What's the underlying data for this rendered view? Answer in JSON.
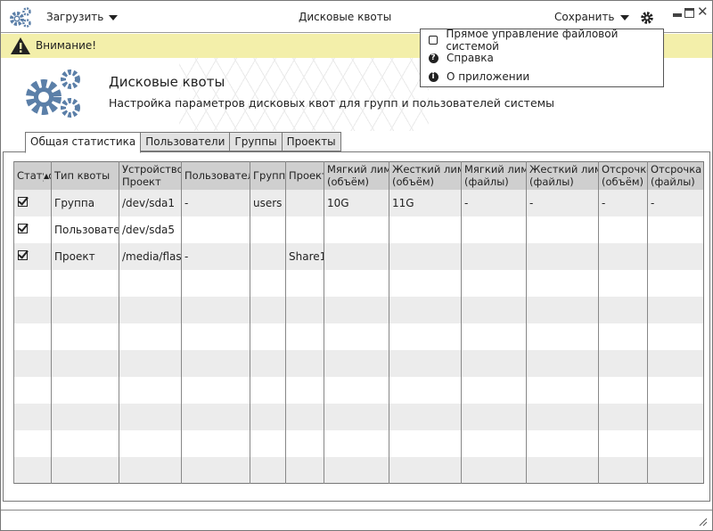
{
  "titlebar": {
    "load_label": "Загрузить",
    "title": "Дисковые квоты",
    "save_label": "Сохранить"
  },
  "warning": {
    "text": "Внимание!"
  },
  "dropdown": {
    "items": [
      {
        "icon": "checkbox-icon",
        "label": "Прямое управление файловой системой"
      },
      {
        "icon": "help-icon",
        "label": "Справка"
      },
      {
        "icon": "info-icon",
        "label": "О приложении"
      }
    ]
  },
  "header": {
    "title": "Дисковые квоты",
    "subtitle": "Настройка параметров дисковых квот для групп и пользователей системы"
  },
  "tabs": [
    {
      "label": "Общая статистика",
      "active": true
    },
    {
      "label": "Пользователи"
    },
    {
      "label": "Группы"
    },
    {
      "label": "Проекты"
    }
  ],
  "table": {
    "columns": [
      {
        "l1": "Статус",
        "l2": ""
      },
      {
        "l1": "Тип квоты",
        "l2": "",
        "sort": "asc"
      },
      {
        "l1": "Устройство",
        "l2": "Проект"
      },
      {
        "l1": "Пользователь",
        "l2": ""
      },
      {
        "l1": "Группа",
        "l2": ""
      },
      {
        "l1": "Проект",
        "l2": ""
      },
      {
        "l1": "Мягкий лимит",
        "l2": "(объём)"
      },
      {
        "l1": "Жесткий лимит",
        "l2": "(объём)"
      },
      {
        "l1": "Мягкий лимит",
        "l2": "(файлы)"
      },
      {
        "l1": "Жесткий лимит",
        "l2": "(файлы)"
      },
      {
        "l1": "Отсрочка",
        "l2": "(объём)"
      },
      {
        "l1": "Отсрочка",
        "l2": "(файлы)"
      }
    ],
    "rows": [
      {
        "checked": true,
        "cells": [
          "Группа",
          "/dev/sda1",
          "-",
          "users",
          "",
          "10G",
          "11G",
          "-",
          "-",
          "-",
          "-"
        ]
      },
      {
        "checked": true,
        "cells": [
          "Пользователь",
          "/dev/sda5",
          "",
          "",
          "",
          "",
          "",
          "",
          "",
          "",
          ""
        ]
      },
      {
        "checked": true,
        "cells": [
          "Проект",
          "/media/flash",
          "-",
          "",
          "Share1",
          "",
          "",
          "",
          "",
          "",
          ""
        ]
      }
    ]
  },
  "colors": {
    "accent": "#5b7fa8",
    "warning_bg": "#f3efaa"
  }
}
